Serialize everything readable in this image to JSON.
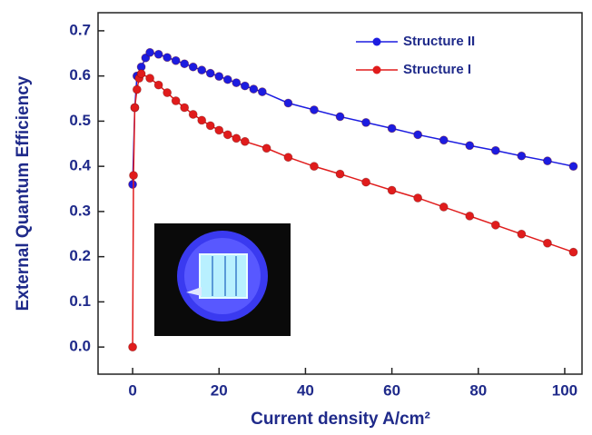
{
  "chart_data": {
    "type": "line",
    "xlabel": "Current density A/cm²",
    "ylabel": "External Quantum Efficiency",
    "xlim": [
      -8,
      104
    ],
    "xticks": [
      0,
      20,
      40,
      60,
      80,
      100
    ],
    "ylim": [
      -0.06,
      0.74
    ],
    "yticks": [
      {
        "value": 0,
        "label": "0.0"
      },
      0.1,
      0.2,
      0.3,
      0.4,
      0.5,
      0.6,
      0.7
    ],
    "legend": "upper right",
    "series": [
      {
        "name": "Structure II",
        "color": "#1c1ce0",
        "x": [
          0,
          0.5,
          1,
          2,
          3,
          4,
          6,
          8,
          10,
          12,
          14,
          16,
          18,
          20,
          22,
          24,
          26,
          28,
          30,
          36,
          42,
          48,
          54,
          60,
          66,
          72,
          78,
          84,
          90,
          96,
          102
        ],
        "values": [
          0.36,
          0.53,
          0.6,
          0.62,
          0.64,
          0.652,
          0.648,
          0.641,
          0.634,
          0.627,
          0.62,
          0.613,
          0.606,
          0.599,
          0.592,
          0.585,
          0.578,
          0.571,
          0.565,
          0.54,
          0.525,
          0.51,
          0.497,
          0.484,
          0.47,
          0.458,
          0.446,
          0.435,
          0.423,
          0.412,
          0.4
        ]
      },
      {
        "name": "Structure I",
        "color": "#e01c1c",
        "x": [
          0,
          0.2,
          0.5,
          1,
          1.5,
          2,
          4,
          6,
          8,
          10,
          12,
          14,
          16,
          18,
          20,
          22,
          24,
          26,
          31,
          36,
          42,
          48,
          54,
          60,
          66,
          72,
          78,
          84,
          90,
          96,
          102
        ],
        "values": [
          0.0,
          0.38,
          0.53,
          0.57,
          0.595,
          0.605,
          0.595,
          0.58,
          0.563,
          0.545,
          0.53,
          0.515,
          0.502,
          0.49,
          0.48,
          0.47,
          0.462,
          0.455,
          0.44,
          0.42,
          0.4,
          0.383,
          0.365,
          0.347,
          0.33,
          0.31,
          0.29,
          0.27,
          0.25,
          0.23,
          0.21
        ]
      }
    ]
  }
}
